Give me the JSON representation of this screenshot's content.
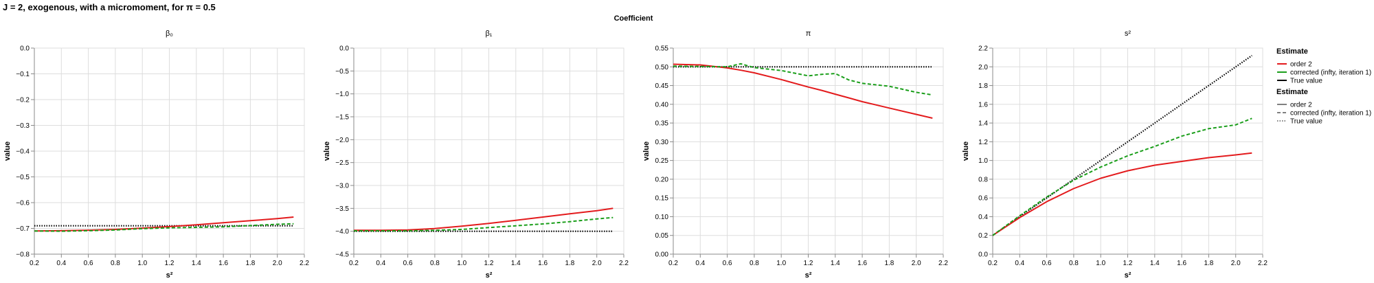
{
  "title": "J = 2, exogenous, with a micromoment,  for π = 0.5",
  "header": "Coefficient",
  "chart_data": [
    {
      "type": "line",
      "panel_title": "β₀",
      "xlabel": "s²",
      "ylabel": "value",
      "xlim": [
        0.2,
        2.2
      ],
      "ylim": [
        -0.8,
        0.0
      ],
      "xticks": [
        "0.2",
        "0.4",
        "0.6",
        "0.8",
        "1.0",
        "1.2",
        "1.4",
        "1.6",
        "1.8",
        "2.0",
        "2.2"
      ],
      "yticks": [
        "−0.8",
        "−0.7",
        "−0.6",
        "−0.5",
        "−0.4",
        "−0.3",
        "−0.2",
        "−0.1",
        "0.0"
      ],
      "x": [
        0.2,
        0.4,
        0.6,
        0.8,
        1.0,
        1.2,
        1.4,
        1.6,
        1.8,
        2.0,
        2.12
      ],
      "series": [
        {
          "name": "order 2",
          "color": "#e31a1c",
          "dash": "solid",
          "values": [
            -0.71,
            -0.709,
            -0.707,
            -0.704,
            -0.699,
            -0.693,
            -0.686,
            -0.678,
            -0.67,
            -0.662,
            -0.656
          ]
        },
        {
          "name": "corrected (infty, iteration 1)",
          "color": "#1a9e1a",
          "dash": "dashed",
          "values": [
            -0.71,
            -0.711,
            -0.709,
            -0.706,
            -0.701,
            -0.698,
            -0.696,
            -0.694,
            -0.689,
            -0.684,
            -0.682
          ]
        },
        {
          "name": "True value",
          "color": "#000000",
          "dash": "dotted",
          "values": [
            -0.69,
            -0.69,
            -0.69,
            -0.69,
            -0.69,
            -0.69,
            -0.69,
            -0.69,
            -0.69,
            -0.69,
            -0.69
          ]
        }
      ]
    },
    {
      "type": "line",
      "panel_title": "β₁",
      "xlabel": "s²",
      "ylabel": "value",
      "xlim": [
        0.2,
        2.2
      ],
      "ylim": [
        -4.5,
        0.0
      ],
      "xticks": [
        "0.2",
        "0.4",
        "0.6",
        "0.8",
        "1.0",
        "1.2",
        "1.4",
        "1.6",
        "1.8",
        "2.0",
        "2.2"
      ],
      "yticks": [
        "−4.5",
        "−4.0",
        "−3.5",
        "−3.0",
        "−2.5",
        "−2.0",
        "−1.5",
        "−1.0",
        "−0.5",
        "0.0"
      ],
      "x": [
        0.2,
        0.4,
        0.6,
        0.8,
        1.0,
        1.2,
        1.4,
        1.6,
        1.8,
        2.0,
        2.12
      ],
      "series": [
        {
          "name": "order 2",
          "color": "#e31a1c",
          "dash": "solid",
          "values": [
            -3.98,
            -3.98,
            -3.97,
            -3.94,
            -3.89,
            -3.83,
            -3.76,
            -3.69,
            -3.62,
            -3.55,
            -3.5
          ]
        },
        {
          "name": "corrected (infty, iteration 1)",
          "color": "#1a9e1a",
          "dash": "dashed",
          "values": [
            -3.99,
            -3.99,
            -3.99,
            -3.98,
            -3.96,
            -3.92,
            -3.88,
            -3.84,
            -3.79,
            -3.73,
            -3.7
          ]
        },
        {
          "name": "True value",
          "color": "#000000",
          "dash": "dotted",
          "values": [
            -4.0,
            -4.0,
            -4.0,
            -4.0,
            -4.0,
            -4.0,
            -4.0,
            -4.0,
            -4.0,
            -4.0,
            -4.0
          ]
        }
      ]
    },
    {
      "type": "line",
      "panel_title": "π",
      "xlabel": "s²",
      "ylabel": "value",
      "xlim": [
        0.2,
        2.2
      ],
      "ylim": [
        0.0,
        0.55
      ],
      "xticks": [
        "0.2",
        "0.4",
        "0.6",
        "0.8",
        "1.0",
        "1.2",
        "1.4",
        "1.6",
        "1.8",
        "2.0",
        "2.2"
      ],
      "yticks": [
        "0.00",
        "0.05",
        "0.10",
        "0.15",
        "0.20",
        "0.25",
        "0.30",
        "0.35",
        "0.40",
        "0.45",
        "0.50",
        "0.55"
      ],
      "x": [
        0.2,
        0.4,
        0.6,
        0.7,
        0.8,
        1.0,
        1.2,
        1.3,
        1.4,
        1.5,
        1.6,
        1.8,
        2.0,
        2.12
      ],
      "series": [
        {
          "name": "order 2",
          "color": "#e31a1c",
          "dash": "solid",
          "values": [
            0.507,
            0.505,
            0.497,
            0.491,
            0.484,
            0.466,
            0.446,
            0.437,
            0.427,
            0.417,
            0.407,
            0.39,
            0.373,
            0.363
          ]
        },
        {
          "name": "corrected (infty, iteration 1)",
          "color": "#1a9e1a",
          "dash": "dashed",
          "values": [
            0.502,
            0.501,
            0.5,
            0.508,
            0.498,
            0.49,
            0.476,
            0.48,
            0.482,
            0.465,
            0.456,
            0.448,
            0.432,
            0.425
          ]
        },
        {
          "name": "True value",
          "color": "#000000",
          "dash": "dotted",
          "values": [
            0.5,
            0.5,
            0.5,
            0.5,
            0.5,
            0.5,
            0.5,
            0.5,
            0.5,
            0.5,
            0.5,
            0.5,
            0.5,
            0.5
          ]
        }
      ]
    },
    {
      "type": "line",
      "panel_title": "s²",
      "xlabel": "s²",
      "ylabel": "value",
      "xlim": [
        0.2,
        2.2
      ],
      "ylim": [
        0.0,
        2.2
      ],
      "xticks": [
        "0.2",
        "0.4",
        "0.6",
        "0.8",
        "1.0",
        "1.2",
        "1.4",
        "1.6",
        "1.8",
        "2.0",
        "2.2"
      ],
      "yticks": [
        "0.0",
        "0.2",
        "0.4",
        "0.6",
        "0.8",
        "1.0",
        "1.2",
        "1.4",
        "1.6",
        "1.8",
        "2.0",
        "2.2"
      ],
      "x": [
        0.2,
        0.4,
        0.6,
        0.8,
        1.0,
        1.2,
        1.4,
        1.6,
        1.8,
        2.0,
        2.12
      ],
      "series": [
        {
          "name": "order 2",
          "color": "#e31a1c",
          "dash": "solid",
          "values": [
            0.2,
            0.39,
            0.56,
            0.7,
            0.81,
            0.89,
            0.95,
            0.99,
            1.03,
            1.06,
            1.08
          ]
        },
        {
          "name": "corrected (infty, iteration 1)",
          "color": "#1a9e1a",
          "dash": "dashed",
          "values": [
            0.2,
            0.41,
            0.61,
            0.79,
            0.93,
            1.05,
            1.15,
            1.26,
            1.34,
            1.38,
            1.45
          ]
        },
        {
          "name": "True value",
          "color": "#000000",
          "dash": "dotted",
          "values": [
            0.2,
            0.4,
            0.6,
            0.8,
            1.0,
            1.2,
            1.4,
            1.6,
            1.8,
            2.0,
            2.12
          ]
        }
      ]
    }
  ],
  "legend": {
    "placement": "right",
    "color_title": "Estimate",
    "color_items": [
      {
        "label": "order 2",
        "color": "#e31a1c"
      },
      {
        "label": "corrected (infty, iteration 1)",
        "color": "#1a9e1a"
      },
      {
        "label": "True value",
        "color": "#000000"
      }
    ],
    "dash_title": "Estimate",
    "dash_items": [
      {
        "label": "order 2",
        "dash": "solid"
      },
      {
        "label": "corrected (infty, iteration 1)",
        "dash": "dashed"
      },
      {
        "label": "True value",
        "dash": "dotted"
      }
    ]
  }
}
